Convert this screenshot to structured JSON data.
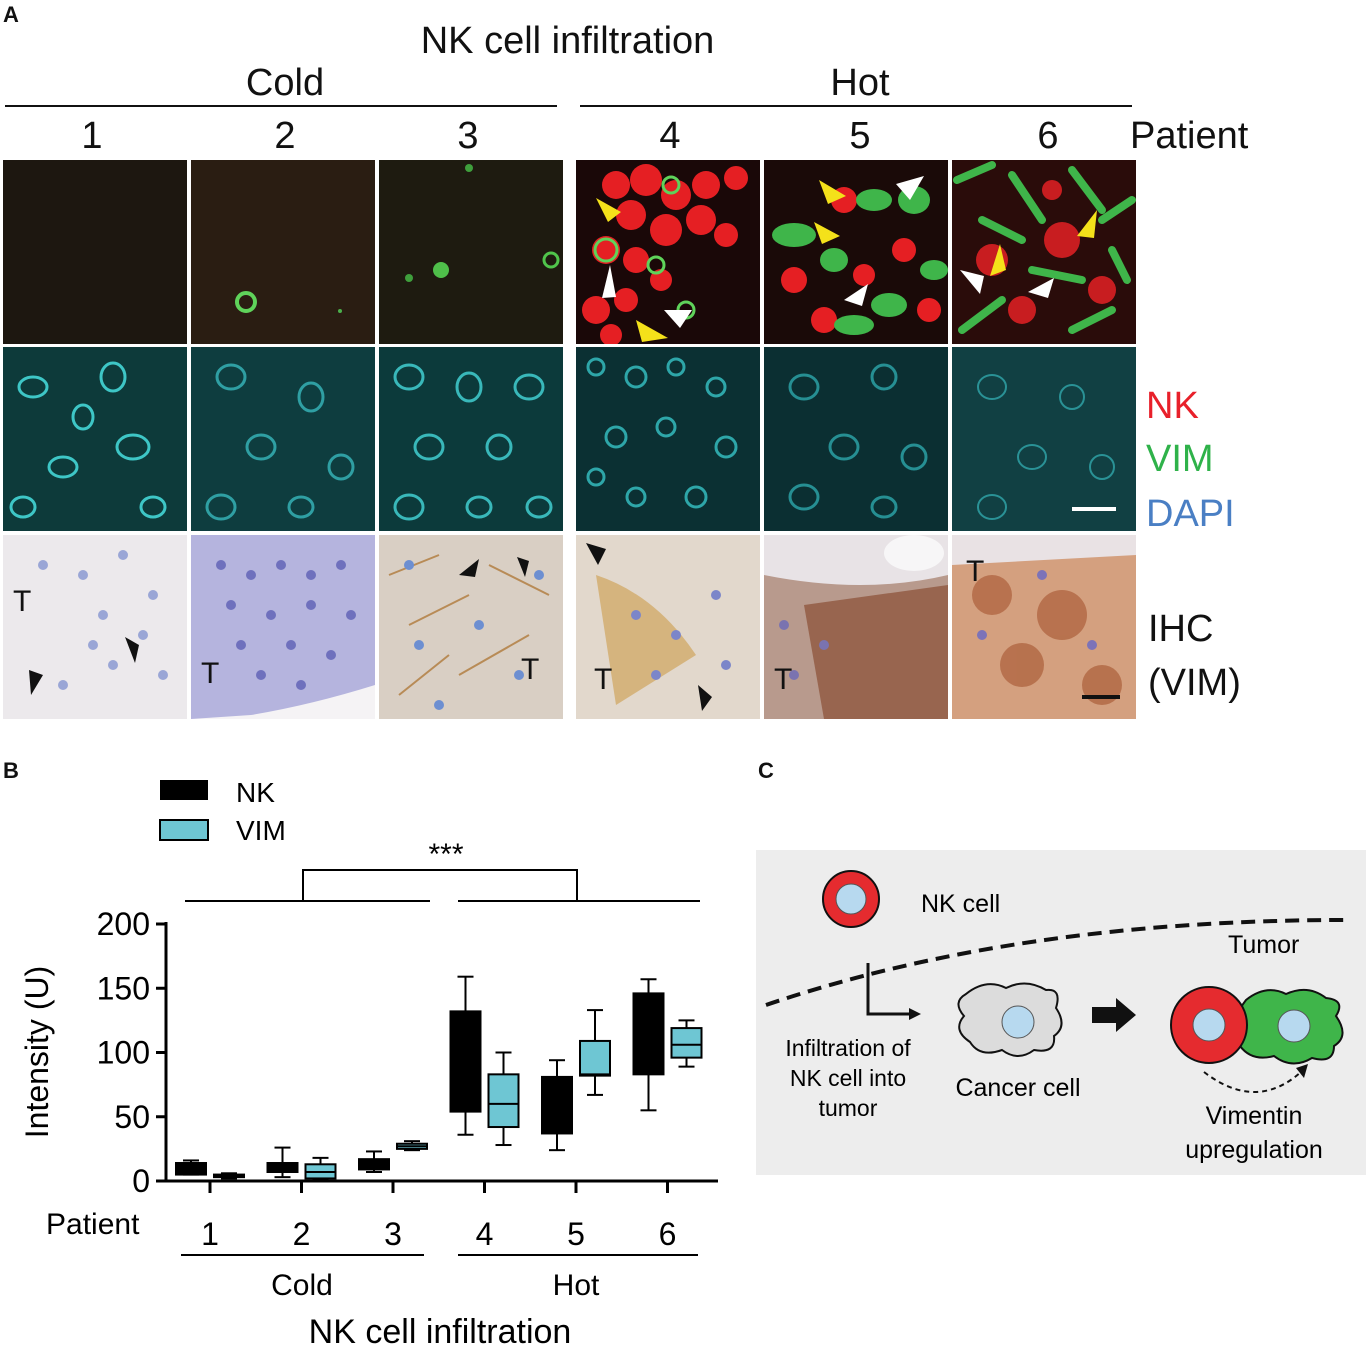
{
  "panel_a": {
    "letter": "A",
    "title": "NK cell infiltration",
    "group_cold": "Cold",
    "group_hot": "Hot",
    "patients": [
      "1",
      "2",
      "3",
      "4",
      "5",
      "6"
    ],
    "patient_label": "Patient",
    "channels": {
      "nk": "NK",
      "vim": "VIM",
      "dapi": "DAPI"
    },
    "channel_colors": {
      "nk": "#e8202a",
      "vim": "#2fb24a",
      "dapi": "#4a7fc4"
    },
    "ihc_label_line1": "IHC",
    "ihc_label_line2": "(VIM)",
    "tumor_marker": "T"
  },
  "panel_b": {
    "letter": "B",
    "significance": "***",
    "legend": [
      {
        "name": "NK",
        "color": "#000000"
      },
      {
        "name": "VIM",
        "color": "#6ec6d3"
      }
    ],
    "ylabel": "Intensity (U)",
    "xlabel": "NK cell infiltration",
    "patient_label": "Patient",
    "group_cold": "Cold",
    "group_hot": "Hot"
  },
  "chart_data": {
    "type": "box",
    "title": "",
    "xlabel": "NK cell infiltration",
    "ylabel": "Intensity (U)",
    "ylim": [
      0,
      200
    ],
    "yticks": [
      0,
      50,
      100,
      150,
      200
    ],
    "categories": [
      "1",
      "2",
      "3",
      "4",
      "5",
      "6"
    ],
    "groups": {
      "Cold": [
        "1",
        "2",
        "3"
      ],
      "Hot": [
        "4",
        "5",
        "6"
      ]
    },
    "series": [
      {
        "name": "NK",
        "color": "#000000",
        "boxes": [
          {
            "min": 5,
            "q1": 5,
            "median": 10,
            "q3": 14,
            "max": 16
          },
          {
            "min": 3,
            "q1": 7,
            "median": 11,
            "q3": 14,
            "max": 26
          },
          {
            "min": 7,
            "q1": 9,
            "median": 14,
            "q3": 17,
            "max": 23
          },
          {
            "min": 36,
            "q1": 54,
            "median": 100,
            "q3": 132,
            "max": 159
          },
          {
            "min": 24,
            "q1": 37,
            "median": 61,
            "q3": 81,
            "max": 94
          },
          {
            "min": 55,
            "q1": 83,
            "median": 118,
            "q3": 146,
            "max": 157
          }
        ]
      },
      {
        "name": "VIM",
        "color": "#6ec6d3",
        "boxes": [
          {
            "min": 2,
            "q1": 3,
            "median": 4,
            "q3": 5,
            "max": 6
          },
          {
            "min": 1,
            "q1": 2,
            "median": 7,
            "q3": 13,
            "max": 18
          },
          {
            "min": 24,
            "q1": 25,
            "median": 27,
            "q3": 29,
            "max": 31
          },
          {
            "min": 28,
            "q1": 42,
            "median": 60,
            "q3": 83,
            "max": 100
          },
          {
            "min": 67,
            "q1": 82,
            "median": 83,
            "q3": 109,
            "max": 133
          },
          {
            "min": 89,
            "q1": 96,
            "median": 106,
            "q3": 119,
            "max": 125
          }
        ]
      }
    ],
    "annotation": "***"
  },
  "panel_c": {
    "letter": "C",
    "nk_cell": "NK cell",
    "tumor": "Tumor",
    "infiltration": [
      "Infiltration of",
      "NK cell into",
      "tumor"
    ],
    "cancer_cell": "Cancer cell",
    "vimentin": [
      "Vimentin",
      "upregulation"
    ]
  }
}
